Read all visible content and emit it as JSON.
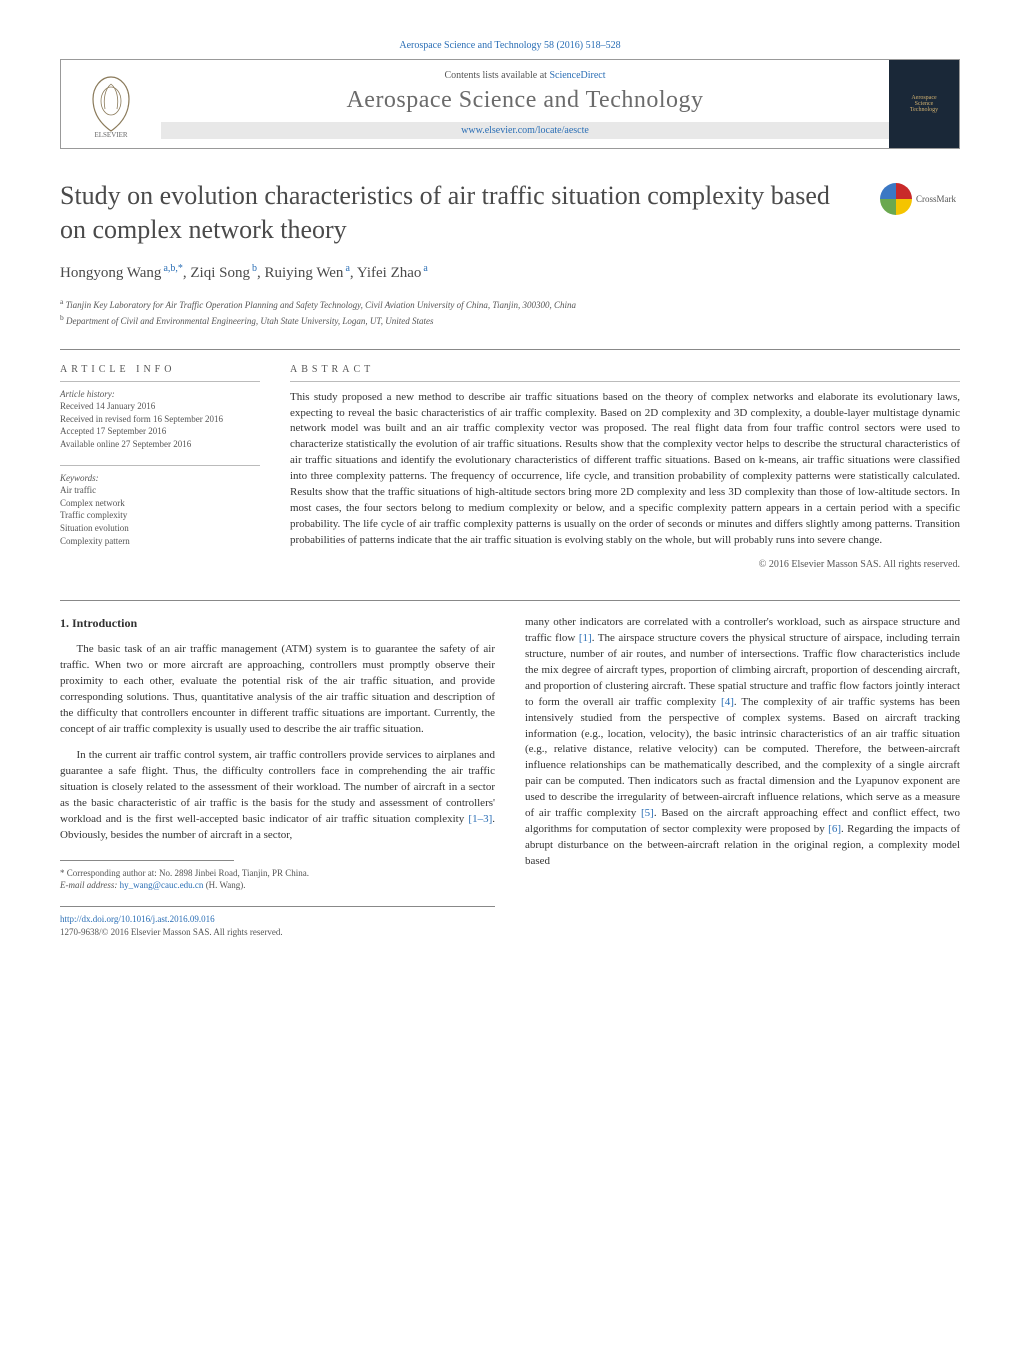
{
  "header": {
    "citation": "Aerospace Science and Technology 58 (2016) 518–528",
    "contents_prefix": "Contents lists available at ",
    "contents_link": "ScienceDirect",
    "journal_name": "Aerospace Science and Technology",
    "journal_url": "www.elsevier.com/locate/aescte",
    "cover_line1": "Aerospace",
    "cover_line2": "Science",
    "cover_line3": "Technology"
  },
  "crossmark": "CrossMark",
  "title": "Study on evolution characteristics of air traffic situation complexity based on complex network theory",
  "authors_html": "Hongyong Wang",
  "authors": [
    {
      "name": "Hongyong Wang",
      "marks": "a,b,*"
    },
    {
      "name": "Ziqi Song",
      "marks": "b"
    },
    {
      "name": "Ruiying Wen",
      "marks": "a"
    },
    {
      "name": "Yifei Zhao",
      "marks": "a"
    }
  ],
  "affiliations": [
    {
      "mark": "a",
      "text": "Tianjin Key Laboratory for Air Traffic Operation Planning and Safety Technology, Civil Aviation University of China, Tianjin, 300300, China"
    },
    {
      "mark": "b",
      "text": "Department of Civil and Environmental Engineering, Utah State University, Logan, UT, United States"
    }
  ],
  "info": {
    "heading": "ARTICLE INFO",
    "history_label": "Article history:",
    "history": [
      "Received 14 January 2016",
      "Received in revised form 16 September 2016",
      "Accepted 17 September 2016",
      "Available online 27 September 2016"
    ],
    "keywords_label": "Keywords:",
    "keywords": [
      "Air traffic",
      "Complex network",
      "Traffic complexity",
      "Situation evolution",
      "Complexity pattern"
    ]
  },
  "abstract": {
    "heading": "ABSTRACT",
    "text": "This study proposed a new method to describe air traffic situations based on the theory of complex networks and elaborate its evolutionary laws, expecting to reveal the basic characteristics of air traffic complexity. Based on 2D complexity and 3D complexity, a double-layer multistage dynamic network model was built and an air traffic complexity vector was proposed. The real flight data from four traffic control sectors were used to characterize statistically the evolution of air traffic situations. Results show that the complexity vector helps to describe the structural characteristics of air traffic situations and identify the evolutionary characteristics of different traffic situations. Based on k-means, air traffic situations were classified into three complexity patterns. The frequency of occurrence, life cycle, and transition probability of complexity patterns were statistically calculated. Results show that the traffic situations of high-altitude sectors bring more 2D complexity and less 3D complexity than those of low-altitude sectors. In most cases, the four sectors belong to medium complexity or below, and a specific complexity pattern appears in a certain period with a specific probability. The life cycle of air traffic complexity patterns is usually on the order of seconds or minutes and differs slightly among patterns. Transition probabilities of patterns indicate that the air traffic situation is evolving stably on the whole, but will probably runs into severe change.",
    "copyright": "© 2016 Elsevier Masson SAS. All rights reserved."
  },
  "body": {
    "section_heading": "1. Introduction",
    "col1_p1": "The basic task of an air traffic management (ATM) system is to guarantee the safety of air traffic. When two or more aircraft are approaching, controllers must promptly observe their proximity to each other, evaluate the potential risk of the air traffic situation, and provide corresponding solutions. Thus, quantitative analysis of the air traffic situation and description of the difficulty that controllers encounter in different traffic situations are important. Currently, the concept of air traffic complexity is usually used to describe the air traffic situation.",
    "col1_p2_pre": "In the current air traffic control system, air traffic controllers provide services to airplanes and guarantee a safe flight. Thus, the difficulty controllers face in comprehending the air traffic situation is closely related to the assessment of their workload. The number of aircraft in a sector as the basic characteristic of air traffic is the basis for the study and assessment of controllers' workload and is the first well-accepted basic indicator of air traffic situation complexity ",
    "col1_p2_ref": "[1–3]",
    "col1_p2_post": ". Obviously, besides the number of aircraft in a sector,",
    "col2_p1_a": "many other indicators are correlated with a controller's workload, such as airspace structure and traffic flow ",
    "col2_ref1": "[1]",
    "col2_p1_b": ". The airspace structure covers the physical structure of airspace, including terrain structure, number of air routes, and number of intersections. Traffic flow characteristics include the mix degree of aircraft types, proportion of climbing aircraft, proportion of descending aircraft, and proportion of clustering aircraft. These spatial structure and traffic flow factors jointly interact to form the overall air traffic complexity ",
    "col2_ref4": "[4]",
    "col2_p1_c": ". The complexity of air traffic systems has been intensively studied from the perspective of complex systems. Based on aircraft tracking information (e.g., location, velocity), the basic intrinsic characteristics of an air traffic situation (e.g., relative distance, relative velocity) can be computed. Therefore, the between-aircraft influence relationships can be mathematically described, and the complexity of a single aircraft pair can be computed. Then indicators such as fractal dimension and the Lyapunov exponent are used to describe the irregularity of between-aircraft influence relations, which serve as a measure of air traffic complexity ",
    "col2_ref5": "[5]",
    "col2_p1_d": ". Based on the aircraft approaching effect and conflict effect, two algorithms for computation of sector complexity were proposed by ",
    "col2_ref6": "[6]",
    "col2_p1_e": ". Regarding the impacts of abrupt disturbance on the between-aircraft relation in the original region, a complexity model based"
  },
  "footnotes": {
    "corr": "* Corresponding author at: No. 2898 Jinbei Road, Tianjin, PR China.",
    "email_label": "E-mail address: ",
    "email": "hy_wang@cauc.edu.cn",
    "email_author": " (H. Wang)."
  },
  "bottom": {
    "doi": "http://dx.doi.org/10.1016/j.ast.2016.09.016",
    "issn_line": "1270-9638/© 2016 Elsevier Masson SAS. All rights reserved."
  },
  "colors": {
    "link": "#2a6eb5",
    "text": "#333333",
    "heading_gray": "#4a4a4a",
    "muted": "#555555",
    "cover_bg": "#1a2838",
    "cover_fg": "#d0b070"
  }
}
